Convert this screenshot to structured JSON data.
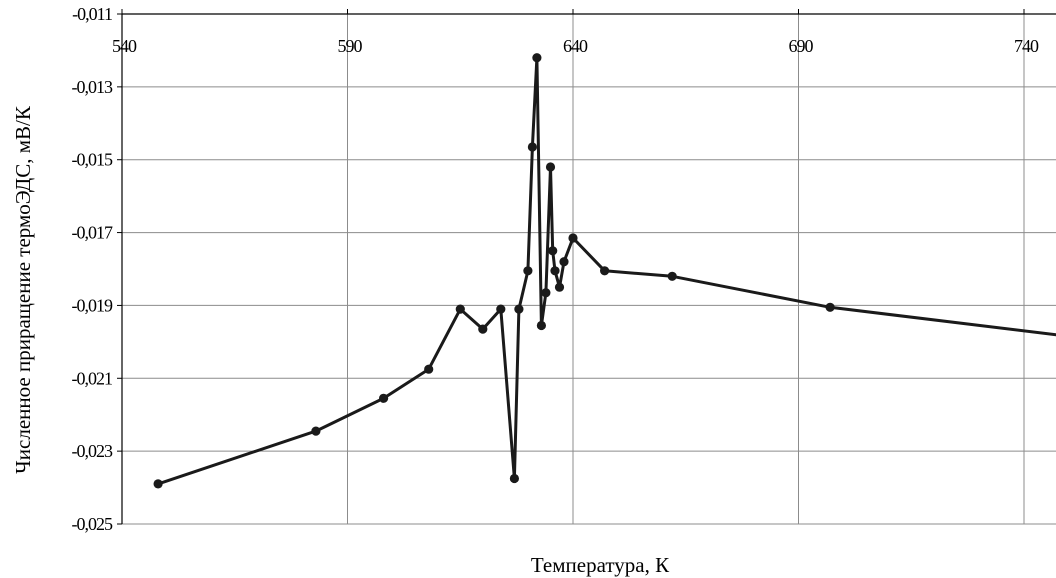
{
  "chart_data": {
    "type": "line",
    "xlabel": "Температура, К",
    "ylabel": "Численное приращение термоЭДС, мВ/К",
    "xlim": [
      540,
      790
    ],
    "ylim": [
      -0.025,
      -0.011
    ],
    "x_ticks": [
      540,
      590,
      640,
      690,
      740
    ],
    "x_tick_labels": [
      "540",
      "590",
      "640",
      "690",
      "740"
    ],
    "y_ticks": [
      -0.011,
      -0.013,
      -0.015,
      -0.017,
      -0.019,
      -0.021,
      -0.023,
      -0.025
    ],
    "y_tick_labels": [
      "-0,011",
      "-0,013",
      "-0,015",
      "-0,017",
      "-0,019",
      "-0,021",
      "-0,023",
      "-0,025"
    ],
    "x_axis_position": "top",
    "grid": true,
    "line_color": "#1a1a1a",
    "series": [
      {
        "x": [
          548,
          583,
          598,
          608,
          615,
          620,
          624,
          627,
          628,
          630,
          631,
          632,
          633,
          634,
          635,
          635.5,
          636,
          637,
          638,
          640,
          647,
          662,
          697,
          790
        ],
        "y": [
          -0.0239,
          -0.02245,
          -0.02155,
          -0.02075,
          -0.0191,
          -0.01965,
          -0.0191,
          -0.02375,
          -0.0191,
          -0.01805,
          -0.01465,
          -0.0122,
          -0.01955,
          -0.01865,
          -0.0152,
          -0.0175,
          -0.01805,
          -0.0185,
          -0.0178,
          -0.01715,
          -0.01805,
          -0.0182,
          -0.01905,
          -0.02045
        ]
      }
    ]
  }
}
